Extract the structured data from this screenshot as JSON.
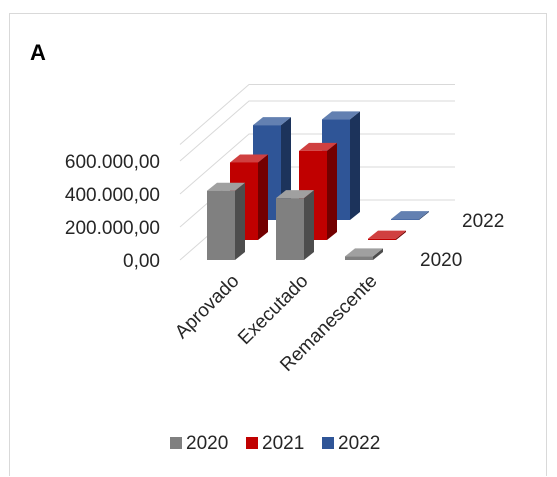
{
  "panel_label": "A",
  "chart_data": {
    "type": "bar",
    "subtype": "3d-clustered-column",
    "title": "",
    "xlabel": "",
    "ylabel": "",
    "categories": [
      "Aprovado",
      "Executado",
      "Remanescente"
    ],
    "series": [
      {
        "name": "2020",
        "values": [
          420000,
          375000,
          22000
        ],
        "color": "#808080"
      },
      {
        "name": "2021",
        "values": [
          470000,
          540000,
          8000
        ],
        "color": "#c00000"
      },
      {
        "name": "2022",
        "values": [
          575000,
          610000,
          5000
        ],
        "color": "#2f5597"
      }
    ],
    "depth_labels": [
      "2020",
      "2022"
    ],
    "y_ticks": [
      "0,00",
      "200.000,00",
      "400.000,00",
      "600.000,00"
    ],
    "y_tick_values": [
      0,
      200000,
      400000,
      600000
    ],
    "ylim": [
      0,
      600000
    ],
    "legend": {
      "position": "bottom",
      "entries": [
        "2020",
        "2021",
        "2022"
      ]
    },
    "grid": true
  }
}
